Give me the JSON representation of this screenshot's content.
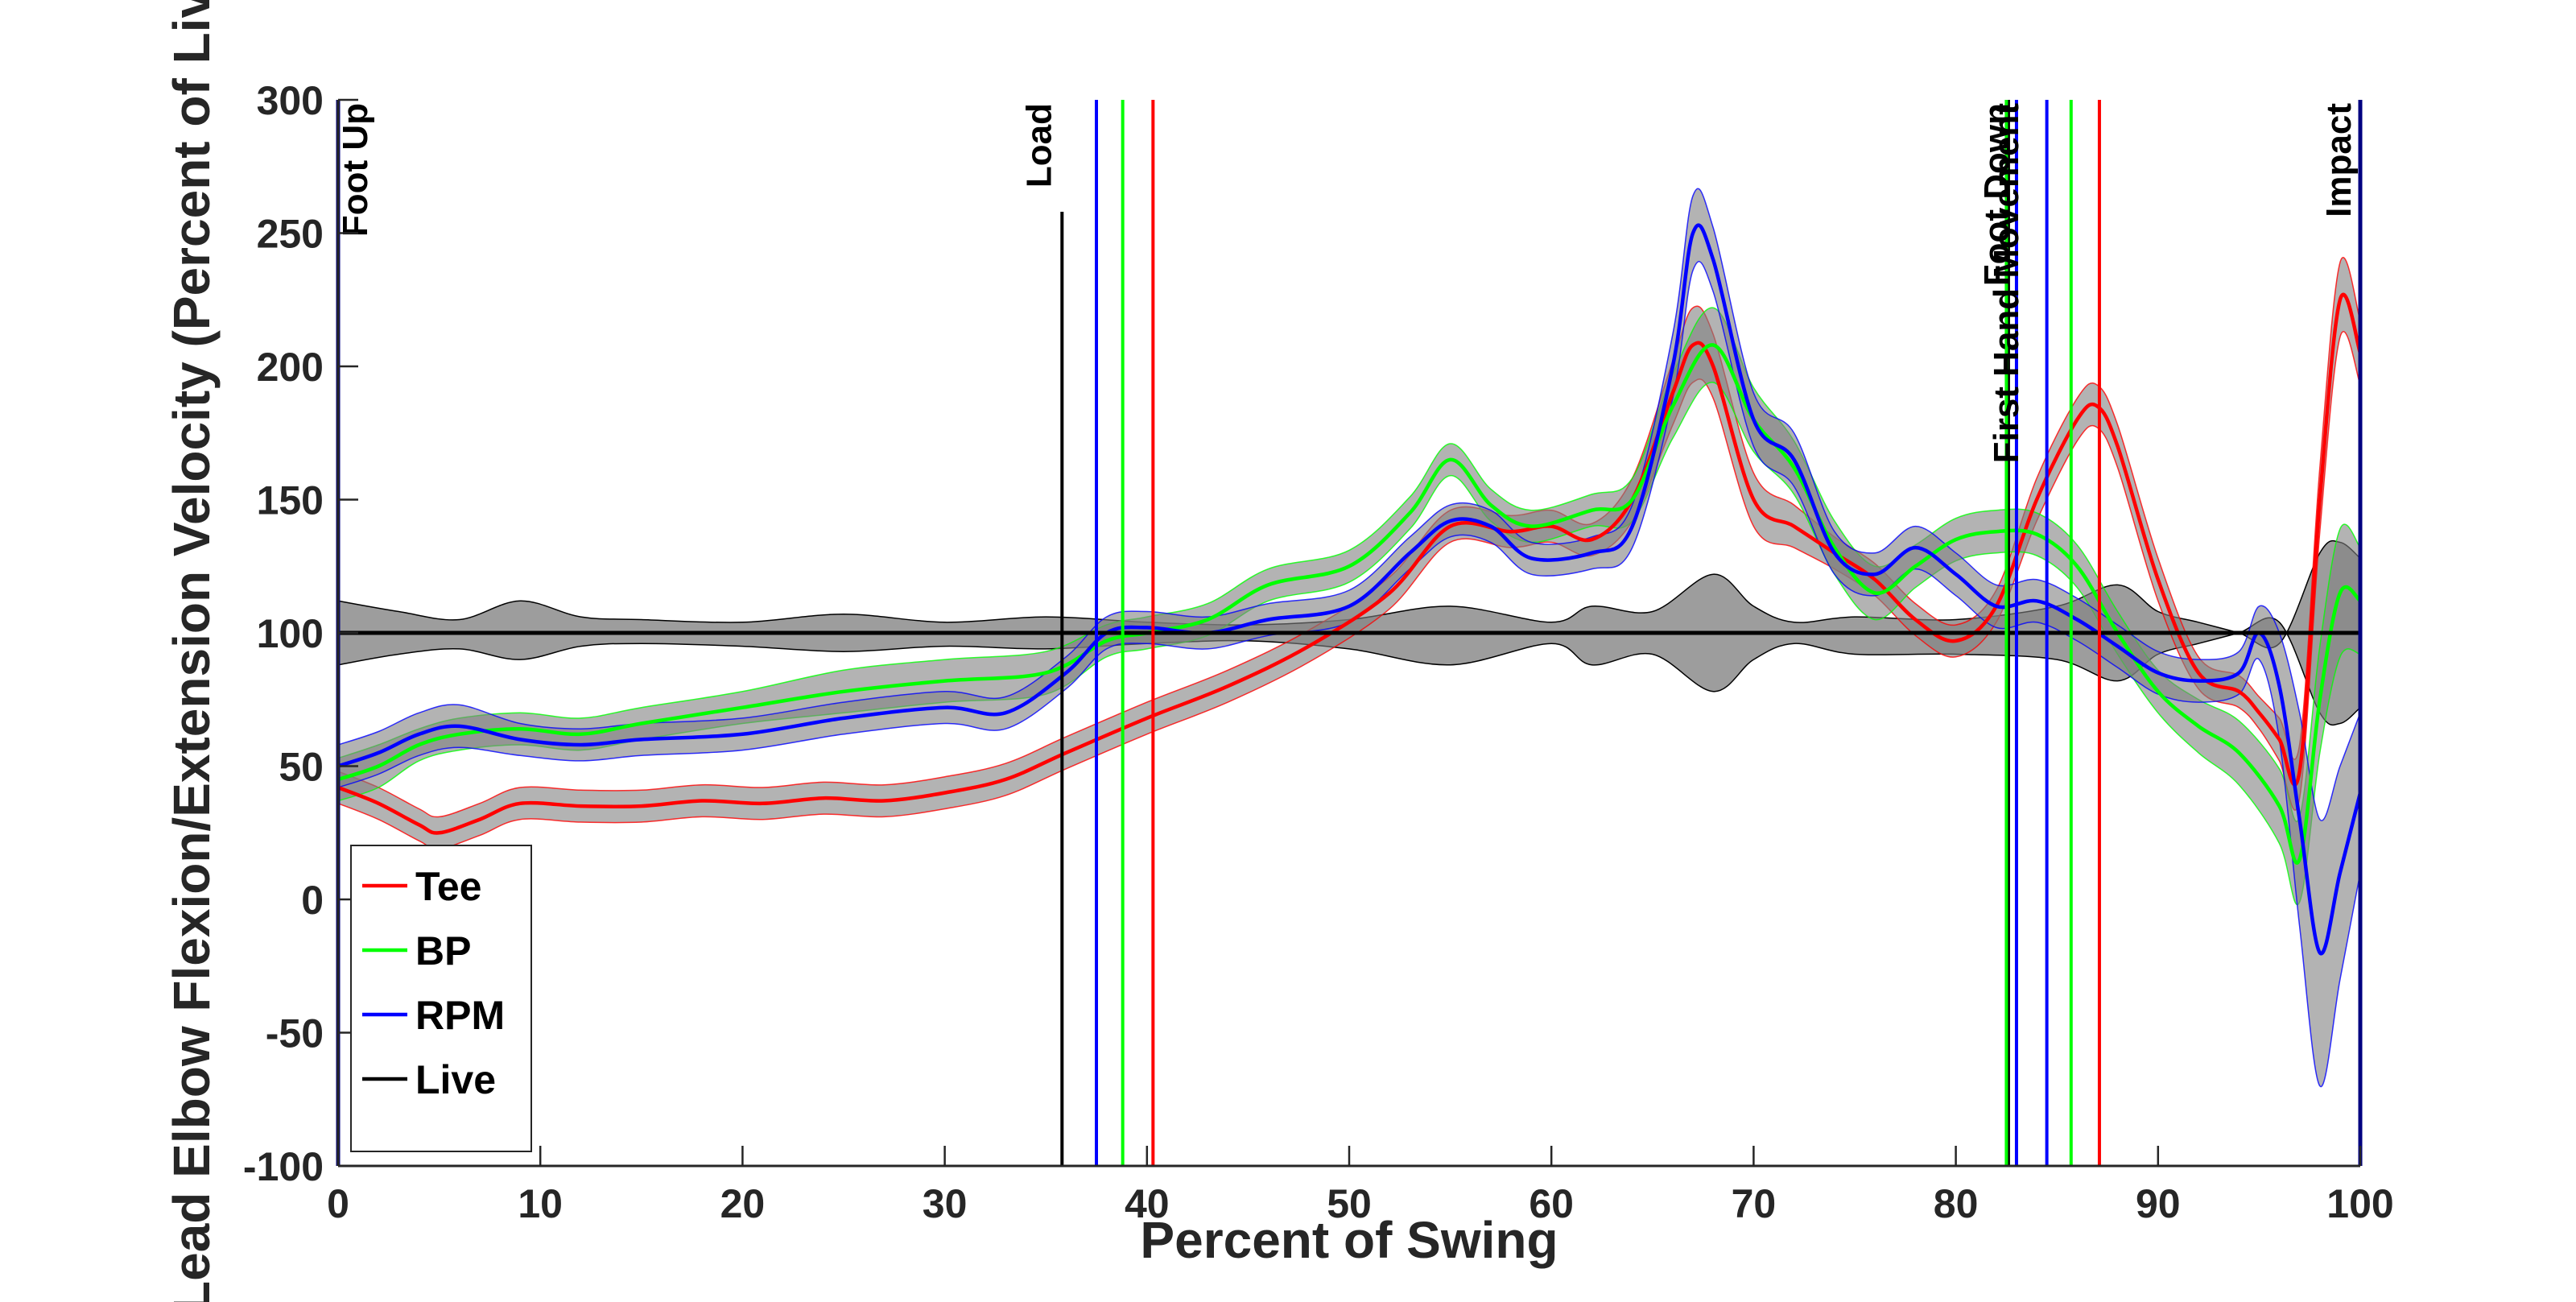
{
  "chart_data": {
    "type": "line",
    "xlabel": "Percent of Swing",
    "ylabel": "Lead Elbow Flexion/Extension Velocity (Percent of Live)",
    "xlim": [
      0,
      100
    ],
    "ylim": [
      -100,
      300
    ],
    "xticks": [
      "0",
      "10",
      "20",
      "30",
      "40",
      "50",
      "60",
      "70",
      "80",
      "90",
      "100"
    ],
    "yticks": [
      "-100",
      "-50",
      "0",
      "50",
      "100",
      "150",
      "200",
      "250",
      "300"
    ],
    "legend_position": "bottom-left",
    "series": [
      {
        "name": "Tee",
        "color": "#ff0000",
        "x": [
          0,
          2,
          4,
          5,
          7,
          9,
          12,
          15,
          18,
          21,
          24,
          27,
          30,
          33,
          36,
          40,
          44,
          48,
          52,
          55,
          58,
          60,
          62,
          64,
          66,
          67,
          68,
          70,
          72,
          74,
          76,
          78,
          80,
          82,
          84,
          86,
          87,
          88,
          90,
          92,
          94,
          95,
          96,
          97,
          98,
          99,
          100
        ],
        "y": [
          42,
          36,
          28,
          25,
          30,
          36,
          35,
          35,
          37,
          36,
          38,
          37,
          40,
          45,
          55,
          68,
          80,
          95,
          115,
          140,
          138,
          140,
          135,
          150,
          190,
          208,
          200,
          150,
          140,
          130,
          120,
          105,
          97,
          110,
          150,
          180,
          185,
          170,
          120,
          85,
          78,
          70,
          60,
          48,
          150,
          225,
          205
        ],
        "band": [
          6,
          6,
          6,
          6,
          6,
          6,
          6,
          6,
          6,
          6,
          6,
          6,
          6,
          6,
          6,
          6,
          6,
          6,
          6,
          6,
          6,
          6,
          6,
          8,
          12,
          14,
          12,
          10,
          8,
          6,
          6,
          6,
          6,
          6,
          8,
          8,
          8,
          8,
          8,
          6,
          6,
          6,
          8,
          10,
          12,
          14,
          12
        ]
      },
      {
        "name": "BP",
        "color": "#00ff00",
        "x": [
          0,
          2,
          4,
          6,
          9,
          12,
          15,
          20,
          25,
          30,
          35,
          38,
          40,
          43,
          46,
          50,
          53,
          55,
          57,
          59,
          62,
          64,
          66,
          68,
          70,
          72,
          74,
          76,
          78,
          80,
          82,
          84,
          86,
          88,
          90,
          92,
          94,
          96,
          97,
          98,
          99,
          100
        ],
        "y": [
          45,
          50,
          58,
          62,
          64,
          62,
          66,
          72,
          78,
          82,
          85,
          97,
          100,
          105,
          118,
          125,
          145,
          165,
          148,
          140,
          146,
          150,
          185,
          208,
          180,
          162,
          132,
          115,
          125,
          135,
          138,
          137,
          125,
          100,
          78,
          65,
          55,
          35,
          15,
          75,
          115,
          112
        ],
        "band": [
          8,
          8,
          6,
          6,
          6,
          6,
          6,
          6,
          8,
          8,
          8,
          6,
          6,
          6,
          6,
          6,
          6,
          6,
          6,
          6,
          6,
          8,
          12,
          14,
          12,
          10,
          10,
          10,
          8,
          8,
          8,
          8,
          8,
          8,
          8,
          10,
          12,
          14,
          16,
          20,
          24,
          20
        ]
      },
      {
        "name": "RPM",
        "color": "#0000ff",
        "x": [
          0,
          2,
          4,
          6,
          9,
          12,
          15,
          20,
          25,
          30,
          33,
          36,
          38,
          40,
          43,
          46,
          50,
          53,
          55,
          57,
          59,
          62,
          64,
          66,
          67,
          68,
          70,
          72,
          74,
          76,
          78,
          80,
          82,
          84,
          86,
          88,
          90,
          92,
          94,
          95,
          96,
          97,
          98,
          99,
          100
        ],
        "y": [
          50,
          55,
          62,
          65,
          60,
          58,
          60,
          62,
          68,
          72,
          70,
          85,
          100,
          102,
          100,
          105,
          110,
          130,
          142,
          140,
          128,
          130,
          140,
          200,
          250,
          240,
          180,
          165,
          130,
          122,
          132,
          122,
          110,
          112,
          105,
          95,
          85,
          82,
          85,
          100,
          80,
          30,
          -20,
          10,
          40
        ],
        "band": [
          8,
          8,
          8,
          8,
          6,
          6,
          6,
          6,
          6,
          6,
          6,
          6,
          6,
          6,
          6,
          6,
          6,
          6,
          6,
          6,
          6,
          6,
          8,
          12,
          14,
          12,
          10,
          10,
          8,
          8,
          8,
          8,
          8,
          8,
          8,
          8,
          8,
          8,
          8,
          10,
          20,
          40,
          50,
          40,
          30
        ]
      },
      {
        "name": "Live",
        "color": "#000000",
        "x": [
          0,
          100
        ],
        "y": [
          100,
          100
        ],
        "band_x": [
          0,
          3,
          6,
          9,
          12,
          15,
          20,
          25,
          30,
          35,
          40,
          45,
          50,
          55,
          60,
          62,
          65,
          68,
          70,
          72,
          75,
          80,
          85,
          88,
          90,
          92,
          94,
          96,
          98,
          99,
          100
        ],
        "band_upper": [
          112,
          108,
          105,
          112,
          106,
          105,
          104,
          107,
          104,
          106,
          104,
          103,
          105,
          110,
          104,
          110,
          108,
          122,
          110,
          104,
          106,
          105,
          110,
          118,
          108,
          104,
          100,
          96,
          130,
          134,
          128
        ],
        "band_lower": [
          88,
          92,
          94,
          90,
          95,
          96,
          95,
          93,
          95,
          94,
          96,
          97,
          94,
          88,
          96,
          88,
          92,
          78,
          90,
          96,
          92,
          92,
          90,
          82,
          92,
          96,
          100,
          104,
          70,
          66,
          72
        ]
      }
    ],
    "event_lines": [
      {
        "label": "Foot Up",
        "color": "#000080",
        "x": 0
      },
      {
        "label": "Load",
        "color": "#000000",
        "x": 35.8
      },
      {
        "label": "",
        "color": "#0000ff",
        "x": 37.5
      },
      {
        "label": "",
        "color": "#00ff00",
        "x": 38.8
      },
      {
        "label": "",
        "color": "#ff0000",
        "x": 40.3
      },
      {
        "label": "First Hand Movement",
        "color": "#000000",
        "x": 82.6
      },
      {
        "label": "Foot Down",
        "color": "#0000ff",
        "x": 83.0
      },
      {
        "label": "",
        "color": "#00ff00",
        "x": 82.5
      },
      {
        "label": "",
        "color": "#0000ff",
        "x": 84.5
      },
      {
        "label": "",
        "color": "#00ff00",
        "x": 85.7
      },
      {
        "label": "",
        "color": "#ff0000",
        "x": 87.1
      },
      {
        "label": "Impact",
        "color": "#000080",
        "x": 100
      }
    ]
  }
}
